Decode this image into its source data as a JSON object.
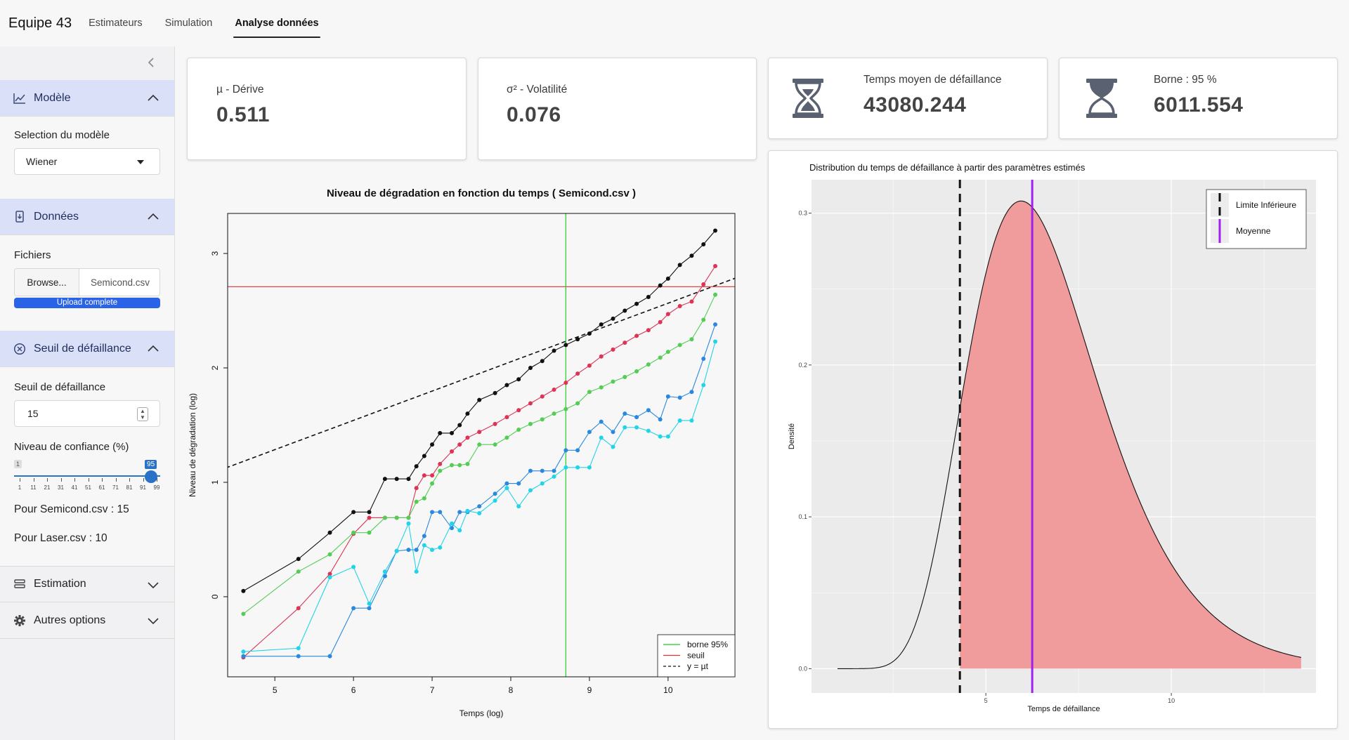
{
  "navbar": {
    "brand": "Equipe 43",
    "tabs": [
      {
        "label": "Estimateurs",
        "active": false
      },
      {
        "label": "Simulation",
        "active": false
      },
      {
        "label": "Analyse données",
        "active": true
      }
    ]
  },
  "sidebar": {
    "collapse_icon": "chevron-left-icon",
    "modele": {
      "title": "Modèle",
      "icon": "line-chart-icon",
      "select_label": "Selection du modèle",
      "select_value": "Wiener"
    },
    "donnees": {
      "title": "Données",
      "icon": "file-import-icon",
      "files_label": "Fichiers",
      "browse_label": "Browse...",
      "file_name": "Semicond.csv",
      "progress_label": "Upload complete"
    },
    "seuil": {
      "title": "Seuil de défaillance",
      "icon": "circle-x-icon",
      "seuil_label": "Seuil de défaillance",
      "seuil_value": "15",
      "confiance_label": "Niveau de confiance (%)",
      "slider_min": "1",
      "slider_value": "95",
      "slider_value_num": 95,
      "slider_ticks": [
        "1",
        "11",
        "21",
        "31",
        "41",
        "51",
        "61",
        "71",
        "81",
        "91",
        "99"
      ],
      "line1": "Pour Semicond.csv : 15",
      "line2": "Pour Laser.csv : 10"
    },
    "estimation": {
      "title": "Estimation",
      "icon": "layers-icon"
    },
    "options": {
      "title": "Autres options",
      "icon": "gear-icon"
    }
  },
  "value_boxes": {
    "derive": {
      "title": "µ - Dérive",
      "value": "0.511"
    },
    "volatilite": {
      "title": "σ² - Volatilité",
      "value": "0.076"
    },
    "temps_moyen": {
      "title": "Temps moyen de défaillance",
      "value": "43080.244",
      "icon": "hourglass-icon"
    },
    "borne": {
      "title": "Borne : 95 %",
      "value": "6011.554",
      "icon": "hourglass-icon"
    }
  },
  "chart_data": [
    {
      "type": "line",
      "title": "Niveau de dégradation en fonction du temps ( Semicond.csv )",
      "xlabel": "Temps (log)",
      "ylabel": "Niveau de dégradation (log)",
      "xlim": [
        4.4,
        10.85
      ],
      "ylim": [
        -0.7,
        3.35
      ],
      "xticks": [
        5,
        6,
        7,
        8,
        9,
        10
      ],
      "yticks": [
        0,
        1,
        2,
        3
      ],
      "legend_position": "bottom-right",
      "legend": [
        {
          "label": "borne 95%",
          "color": "#22cc22",
          "dash": false
        },
        {
          "label": "seuil",
          "color": "#dd3333",
          "dash": false
        },
        {
          "label": "y =  µt",
          "color": "#111111",
          "dash": true
        }
      ],
      "hline": {
        "y": 2.71,
        "color": "#dd3333"
      },
      "vline": {
        "x": 8.7,
        "color": "#22cc22"
      },
      "refline": {
        "slope": 0.2565,
        "intercept": 0.0,
        "x0": 4.4,
        "x1": 10.85
      },
      "x": [
        4.6,
        5.3,
        5.7,
        6.0,
        6.2,
        6.4,
        6.55,
        6.7,
        6.8,
        6.9,
        7.0,
        7.1,
        7.25,
        7.35,
        7.45,
        7.6,
        7.8,
        7.95,
        8.1,
        8.25,
        8.4,
        8.55,
        8.7,
        8.85,
        9.0,
        9.15,
        9.3,
        9.45,
        9.6,
        9.75,
        9.9,
        10.0,
        10.15,
        10.3,
        10.45,
        10.6
      ],
      "series": [
        {
          "color": "#111111",
          "values": [
            0.05,
            0.33,
            0.56,
            0.74,
            0.74,
            1.03,
            1.03,
            1.03,
            1.14,
            1.23,
            1.33,
            1.43,
            1.43,
            1.5,
            1.6,
            1.72,
            1.78,
            1.85,
            1.9,
            2.0,
            2.06,
            2.15,
            2.2,
            2.25,
            2.3,
            2.38,
            2.43,
            2.5,
            2.56,
            2.62,
            2.72,
            2.78,
            2.9,
            2.98,
            3.08,
            3.2
          ]
        },
        {
          "color": "#dd3355",
          "values": [
            -0.53,
            -0.1,
            0.2,
            0.55,
            0.69,
            0.69,
            0.69,
            0.69,
            0.95,
            1.06,
            1.06,
            1.16,
            1.27,
            1.33,
            1.39,
            1.44,
            1.51,
            1.57,
            1.63,
            1.69,
            1.75,
            1.81,
            1.87,
            1.95,
            2.02,
            2.1,
            2.16,
            2.22,
            2.28,
            2.33,
            2.4,
            2.47,
            2.54,
            2.58,
            2.73,
            2.89
          ]
        },
        {
          "color": "#55cc55",
          "values": [
            -0.15,
            0.22,
            0.37,
            0.56,
            0.56,
            0.69,
            0.69,
            0.69,
            0.83,
            0.86,
            0.99,
            1.1,
            1.15,
            1.15,
            1.16,
            1.33,
            1.33,
            1.39,
            1.46,
            1.51,
            1.55,
            1.6,
            1.64,
            1.69,
            1.79,
            1.83,
            1.88,
            1.92,
            1.97,
            2.03,
            2.09,
            2.14,
            2.2,
            2.25,
            2.42,
            2.64
          ]
        },
        {
          "color": "#2a88dd",
          "values": [
            -0.52,
            -0.52,
            -0.52,
            -0.1,
            -0.1,
            0.18,
            0.4,
            0.41,
            0.41,
            0.53,
            0.74,
            0.74,
            0.6,
            0.74,
            0.74,
            0.79,
            0.9,
            0.99,
            0.99,
            1.1,
            1.1,
            1.1,
            1.28,
            1.28,
            1.44,
            1.53,
            1.44,
            1.6,
            1.57,
            1.63,
            1.55,
            1.75,
            1.74,
            1.79,
            2.08,
            2.38
          ]
        },
        {
          "color": "#22d4e8",
          "values": [
            -0.48,
            -0.45,
            0.17,
            0.26,
            -0.06,
            0.22,
            0.4,
            0.64,
            0.22,
            0.45,
            0.41,
            0.43,
            0.64,
            0.58,
            0.75,
            0.73,
            0.84,
            0.95,
            0.79,
            0.93,
            0.99,
            1.05,
            1.13,
            1.13,
            1.13,
            1.39,
            1.31,
            1.48,
            1.48,
            1.45,
            1.4,
            1.4,
            1.54,
            1.54,
            1.85,
            2.23
          ]
        }
      ]
    },
    {
      "type": "area",
      "title": "Distribution du temps de défaillance à partir des paramètres estimés",
      "xlabel": "Temps de défaillance",
      "ylabel": "Densité",
      "xlim": [
        0.3,
        13.9
      ],
      "ylim": [
        -0.016,
        0.322
      ],
      "xticks": [
        5,
        10
      ],
      "yticks": [
        0.0,
        0.1,
        0.2,
        0.3
      ],
      "ytick_labels": [
        "0.0",
        "0.1",
        "0.2",
        "0.3"
      ],
      "lower_bound_x": 4.3,
      "mean_x": 6.25,
      "peak_x": 5.95,
      "peak_y": 0.308,
      "curve_x_range": [
        1.0,
        13.5
      ],
      "fill_color": "#f19c9c",
      "lower_bound_color": "#111111",
      "mean_color": "#a020f0",
      "legend_position": "top-right",
      "legend": [
        {
          "label": "Limite Inférieure",
          "color": "#111111"
        },
        {
          "label": "Moyenne",
          "color": "#a020f0"
        }
      ]
    }
  ]
}
